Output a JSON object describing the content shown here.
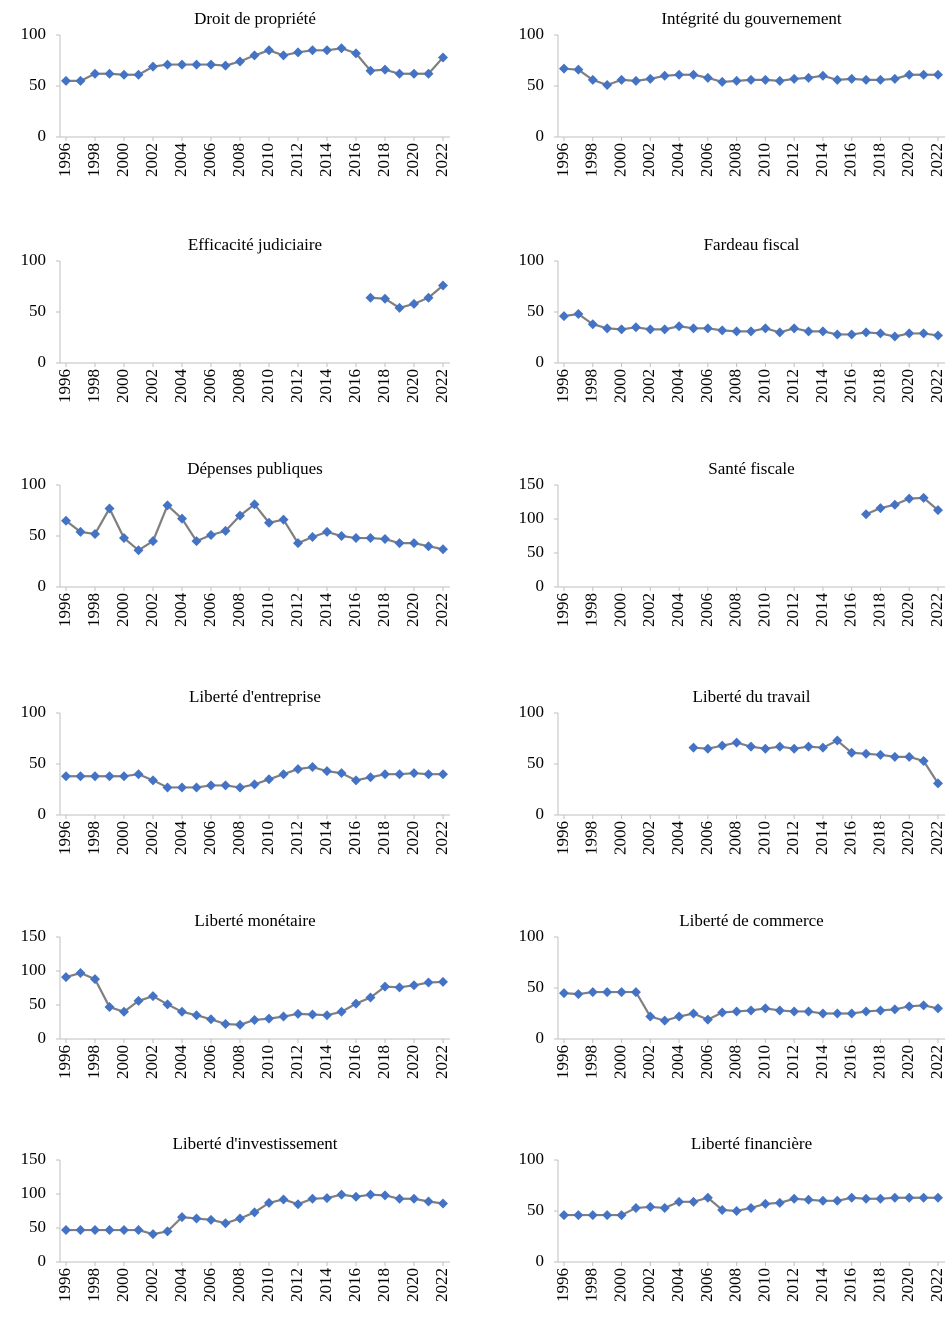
{
  "chart_data": [
    {
      "type": "line",
      "title": "Droit de propriété",
      "color": "#4472c4",
      "line_color": "#7f7f7f",
      "x": [
        1996,
        1997,
        1998,
        1999,
        2000,
        2001,
        2002,
        2003,
        2004,
        2005,
        2006,
        2007,
        2008,
        2009,
        2010,
        2011,
        2012,
        2013,
        2014,
        2015,
        2016,
        2017,
        2018,
        2019,
        2020,
        2021,
        2022
      ],
      "values": [
        55,
        55,
        62,
        62,
        61,
        61,
        69,
        71,
        71,
        71,
        71,
        70,
        74,
        80,
        85,
        80,
        83,
        85,
        85,
        87,
        82,
        65,
        66,
        62,
        62,
        62,
        78
      ],
      "xlim": [
        1996,
        2022
      ],
      "xticks": [
        1996,
        1998,
        2000,
        2002,
        2004,
        2006,
        2008,
        2010,
        2012,
        2014,
        2016,
        2018,
        2020,
        2022
      ],
      "ylim": [
        0,
        100
      ],
      "yticks": [
        0,
        50,
        100
      ]
    },
    {
      "type": "line",
      "title": "Intégrité du gouvernement",
      "color": "#4472c4",
      "line_color": "#7f7f7f",
      "x": [
        1996,
        1997,
        1998,
        1999,
        2000,
        2001,
        2002,
        2003,
        2004,
        2005,
        2006,
        2007,
        2008,
        2009,
        2010,
        2011,
        2012,
        2013,
        2014,
        2015,
        2016,
        2017,
        2018,
        2019,
        2020,
        2021,
        2022
      ],
      "values": [
        67,
        66,
        56,
        51,
        56,
        55,
        57,
        60,
        61,
        61,
        58,
        54,
        55,
        56,
        56,
        55,
        57,
        58,
        60,
        56,
        57,
        56,
        56,
        57,
        61,
        61,
        61
      ],
      "xlim": [
        1996,
        2022
      ],
      "xticks": [
        1996,
        1998,
        2000,
        2002,
        2004,
        2006,
        2008,
        2010,
        2012,
        2014,
        2016,
        2018,
        2020,
        2022
      ],
      "ylim": [
        0,
        100
      ],
      "yticks": [
        0,
        50,
        100
      ]
    },
    {
      "type": "line",
      "title": "Efficacité judiciaire",
      "color": "#4472c4",
      "line_color": "#7f7f7f",
      "x": [
        1996,
        1997,
        1998,
        1999,
        2000,
        2001,
        2002,
        2003,
        2004,
        2005,
        2006,
        2007,
        2008,
        2009,
        2010,
        2011,
        2012,
        2013,
        2014,
        2015,
        2016,
        2017,
        2018,
        2019,
        2020,
        2021,
        2022
      ],
      "values": [
        null,
        null,
        null,
        null,
        null,
        null,
        null,
        null,
        null,
        null,
        null,
        null,
        null,
        null,
        null,
        null,
        null,
        null,
        null,
        null,
        null,
        64,
        63,
        54,
        58,
        64,
        76
      ],
      "xlim": [
        1996,
        2022
      ],
      "xticks": [
        1996,
        1998,
        2000,
        2002,
        2004,
        2006,
        2008,
        2010,
        2012,
        2014,
        2016,
        2018,
        2020,
        2022
      ],
      "ylim": [
        0,
        100
      ],
      "yticks": [
        0,
        50,
        100
      ]
    },
    {
      "type": "line",
      "title": "Fardeau fiscal",
      "color": "#4472c4",
      "line_color": "#7f7f7f",
      "x": [
        1996,
        1997,
        1998,
        1999,
        2000,
        2001,
        2002,
        2003,
        2004,
        2005,
        2006,
        2007,
        2008,
        2009,
        2010,
        2011,
        2012,
        2013,
        2014,
        2015,
        2016,
        2017,
        2018,
        2019,
        2020,
        2021,
        2022
      ],
      "values": [
        46,
        48,
        38,
        34,
        33,
        35,
        33,
        33,
        36,
        34,
        34,
        32,
        31,
        31,
        34,
        30,
        34,
        31,
        31,
        28,
        28,
        30,
        29,
        26,
        29,
        29,
        27
      ],
      "xlim": [
        1996,
        2022
      ],
      "xticks": [
        1996,
        1998,
        2000,
        2002,
        2004,
        2006,
        2008,
        2010,
        2012,
        2014,
        2016,
        2018,
        2020,
        2022
      ],
      "ylim": [
        0,
        100
      ],
      "yticks": [
        0,
        50,
        100
      ]
    },
    {
      "type": "line",
      "title": "Dépenses publiques",
      "color": "#4472c4",
      "line_color": "#7f7f7f",
      "x": [
        1996,
        1997,
        1998,
        1999,
        2000,
        2001,
        2002,
        2003,
        2004,
        2005,
        2006,
        2007,
        2008,
        2009,
        2010,
        2011,
        2012,
        2013,
        2014,
        2015,
        2016,
        2017,
        2018,
        2019,
        2020,
        2021,
        2022
      ],
      "values": [
        65,
        54,
        52,
        77,
        48,
        36,
        45,
        80,
        67,
        45,
        51,
        55,
        70,
        81,
        63,
        66,
        43,
        49,
        54,
        50,
        48,
        48,
        47,
        43,
        43,
        40,
        37
      ],
      "xlim": [
        1996,
        2022
      ],
      "xticks": [
        1996,
        1998,
        2000,
        2002,
        2004,
        2006,
        2008,
        2010,
        2012,
        2014,
        2016,
        2018,
        2020,
        2022
      ],
      "ylim": [
        0,
        100
      ],
      "yticks": [
        0,
        50,
        100
      ]
    },
    {
      "type": "line",
      "title": "Santé fiscale",
      "color": "#4472c4",
      "line_color": "#7f7f7f",
      "x": [
        1996,
        1997,
        1998,
        1999,
        2000,
        2001,
        2002,
        2003,
        2004,
        2005,
        2006,
        2007,
        2008,
        2009,
        2010,
        2011,
        2012,
        2013,
        2014,
        2015,
        2016,
        2017,
        2018,
        2019,
        2020,
        2021,
        2022
      ],
      "values": [
        null,
        null,
        null,
        null,
        null,
        null,
        null,
        null,
        null,
        null,
        null,
        null,
        null,
        null,
        null,
        null,
        null,
        null,
        null,
        null,
        null,
        107,
        116,
        121,
        130,
        131,
        113
      ],
      "xlim": [
        1996,
        2022
      ],
      "xticks": [
        1996,
        1998,
        2000,
        2002,
        2004,
        2006,
        2008,
        2010,
        2012,
        2014,
        2016,
        2018,
        2020,
        2022
      ],
      "ylim": [
        0,
        150
      ],
      "yticks": [
        0,
        50,
        100,
        150
      ]
    },
    {
      "type": "line",
      "title": "Liberté d'entreprise",
      "color": "#4472c4",
      "line_color": "#7f7f7f",
      "x": [
        1996,
        1997,
        1998,
        1999,
        2000,
        2001,
        2002,
        2003,
        2004,
        2005,
        2006,
        2007,
        2008,
        2009,
        2010,
        2011,
        2012,
        2013,
        2014,
        2015,
        2016,
        2017,
        2018,
        2019,
        2020,
        2021,
        2022
      ],
      "values": [
        38,
        38,
        38,
        38,
        38,
        40,
        34,
        27,
        27,
        27,
        29,
        29,
        27,
        30,
        35,
        40,
        45,
        47,
        43,
        41,
        34,
        37,
        40,
        40,
        41,
        40,
        40
      ],
      "xlim": [
        1996,
        2022
      ],
      "xticks": [
        1996,
        1998,
        2000,
        2002,
        2004,
        2006,
        2008,
        2010,
        2012,
        2014,
        2016,
        2018,
        2020,
        2022
      ],
      "ylim": [
        0,
        100
      ],
      "yticks": [
        0,
        50,
        100
      ]
    },
    {
      "type": "line",
      "title": "Liberté du travail",
      "color": "#4472c4",
      "line_color": "#7f7f7f",
      "x": [
        1996,
        1997,
        1998,
        1999,
        2000,
        2001,
        2002,
        2003,
        2004,
        2005,
        2006,
        2007,
        2008,
        2009,
        2010,
        2011,
        2012,
        2013,
        2014,
        2015,
        2016,
        2017,
        2018,
        2019,
        2020,
        2021,
        2022
      ],
      "values": [
        null,
        null,
        null,
        null,
        null,
        null,
        null,
        null,
        null,
        66,
        65,
        68,
        71,
        67,
        65,
        67,
        65,
        67,
        66,
        73,
        61,
        60,
        59,
        57,
        57,
        53,
        31
      ],
      "xlim": [
        1996,
        2022
      ],
      "xticks": [
        1996,
        1998,
        2000,
        2002,
        2004,
        2006,
        2008,
        2010,
        2012,
        2014,
        2016,
        2018,
        2020,
        2022
      ],
      "ylim": [
        0,
        100
      ],
      "yticks": [
        0,
        50,
        100
      ]
    },
    {
      "type": "line",
      "title": "Liberté monétaire",
      "color": "#4472c4",
      "line_color": "#7f7f7f",
      "x": [
        1996,
        1997,
        1998,
        1999,
        2000,
        2001,
        2002,
        2003,
        2004,
        2005,
        2006,
        2007,
        2008,
        2009,
        2010,
        2011,
        2012,
        2013,
        2014,
        2015,
        2016,
        2017,
        2018,
        2019,
        2020,
        2021,
        2022
      ],
      "values": [
        91,
        97,
        88,
        47,
        40,
        56,
        63,
        51,
        40,
        35,
        29,
        22,
        21,
        28,
        30,
        33,
        37,
        36,
        35,
        40,
        52,
        61,
        77,
        76,
        79,
        83,
        84
      ],
      "xlim": [
        1996,
        2022
      ],
      "xticks": [
        1996,
        1998,
        2000,
        2002,
        2004,
        2006,
        2008,
        2010,
        2012,
        2014,
        2016,
        2018,
        2020,
        2022
      ],
      "ylim": [
        0,
        150
      ],
      "yticks": [
        0,
        50,
        100,
        150
      ]
    },
    {
      "type": "line",
      "title": "Liberté de commerce",
      "color": "#4472c4",
      "line_color": "#7f7f7f",
      "x": [
        1996,
        1997,
        1998,
        1999,
        2000,
        2001,
        2002,
        2003,
        2004,
        2005,
        2006,
        2007,
        2008,
        2009,
        2010,
        2011,
        2012,
        2013,
        2014,
        2015,
        2016,
        2017,
        2018,
        2019,
        2020,
        2021,
        2022
      ],
      "values": [
        45,
        44,
        46,
        46,
        46,
        46,
        22,
        18,
        22,
        25,
        19,
        26,
        27,
        28,
        30,
        28,
        27,
        27,
        25,
        25,
        25,
        27,
        28,
        29,
        32,
        33,
        30
      ],
      "xlim": [
        1996,
        2022
      ],
      "xticks": [
        1996,
        1998,
        2000,
        2002,
        2004,
        2006,
        2008,
        2010,
        2012,
        2014,
        2016,
        2018,
        2020,
        2022
      ],
      "ylim": [
        0,
        100
      ],
      "yticks": [
        0,
        50,
        100
      ]
    },
    {
      "type": "line",
      "title": "Liberté d'investissement",
      "color": "#4472c4",
      "line_color": "#7f7f7f",
      "x": [
        1996,
        1997,
        1998,
        1999,
        2000,
        2001,
        2002,
        2003,
        2004,
        2005,
        2006,
        2007,
        2008,
        2009,
        2010,
        2011,
        2012,
        2013,
        2014,
        2015,
        2016,
        2017,
        2018,
        2019,
        2020,
        2021,
        2022
      ],
      "values": [
        47,
        47,
        47,
        47,
        47,
        47,
        41,
        45,
        66,
        64,
        62,
        57,
        64,
        73,
        87,
        92,
        85,
        93,
        94,
        99,
        96,
        99,
        98,
        93,
        93,
        89,
        86
      ],
      "xlim": [
        1996,
        2022
      ],
      "xticks": [
        1996,
        1998,
        2000,
        2002,
        2004,
        2006,
        2008,
        2010,
        2012,
        2014,
        2016,
        2018,
        2020,
        2022
      ],
      "ylim": [
        0,
        150
      ],
      "yticks": [
        0,
        50,
        100,
        150
      ]
    },
    {
      "type": "line",
      "title": "Liberté financière",
      "color": "#4472c4",
      "line_color": "#7f7f7f",
      "x": [
        1996,
        1997,
        1998,
        1999,
        2000,
        2001,
        2002,
        2003,
        2004,
        2005,
        2006,
        2007,
        2008,
        2009,
        2010,
        2011,
        2012,
        2013,
        2014,
        2015,
        2016,
        2017,
        2018,
        2019,
        2020,
        2021,
        2022
      ],
      "values": [
        46,
        46,
        46,
        46,
        46,
        53,
        54,
        53,
        59,
        59,
        63,
        51,
        50,
        53,
        57,
        58,
        62,
        61,
        60,
        60,
        63,
        62,
        62,
        63,
        63,
        63,
        63
      ],
      "xlim": [
        1996,
        2022
      ],
      "xticks": [
        1996,
        1998,
        2000,
        2002,
        2004,
        2006,
        2008,
        2010,
        2012,
        2014,
        2016,
        2018,
        2020,
        2022
      ],
      "ylim": [
        0,
        100
      ],
      "yticks": [
        0,
        50,
        100
      ]
    }
  ]
}
